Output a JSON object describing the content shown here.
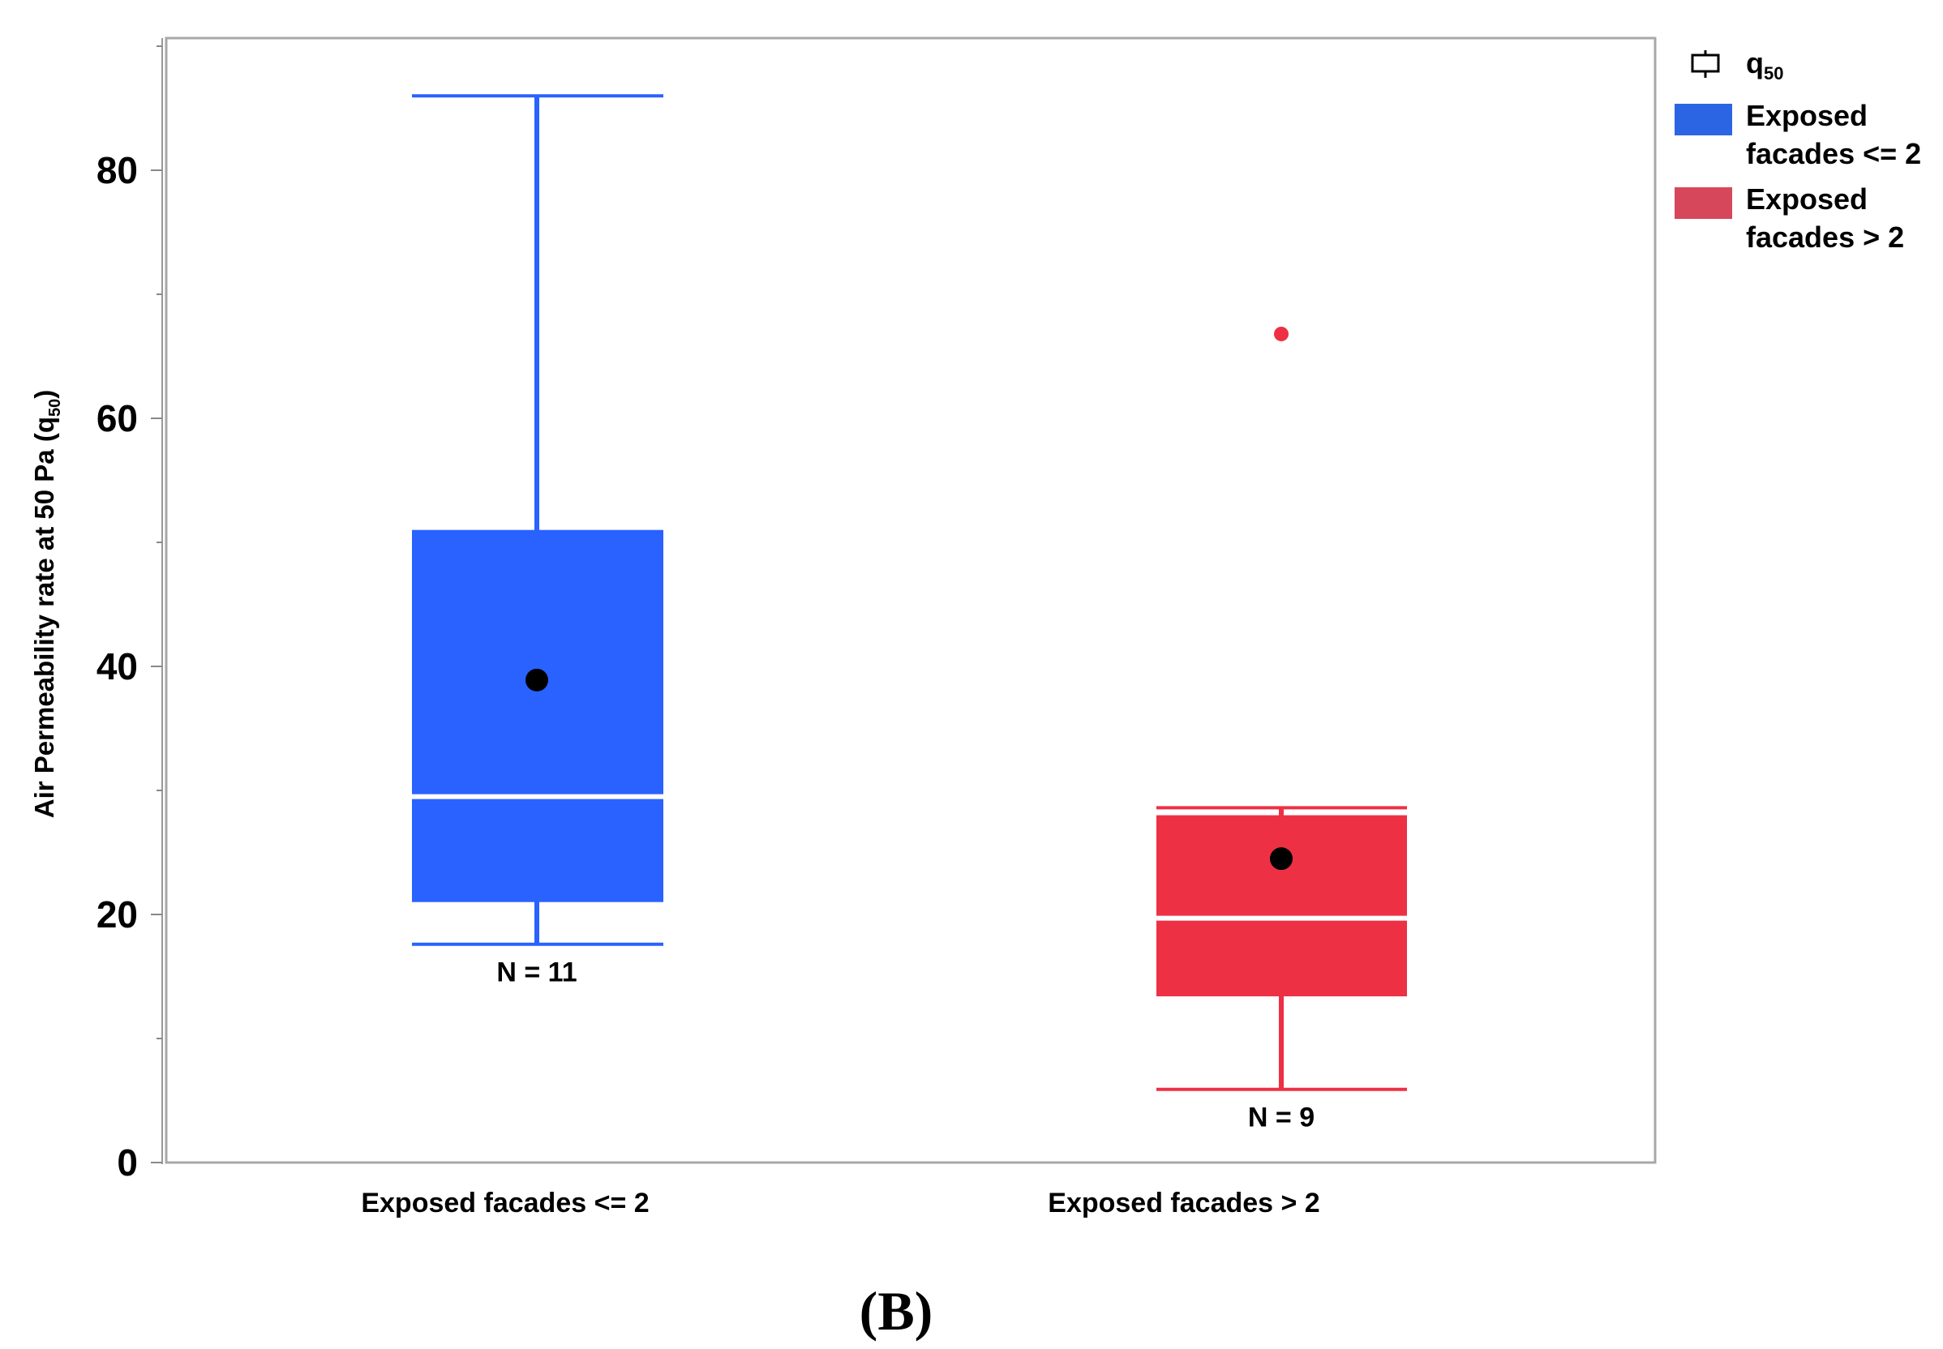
{
  "chart_data": {
    "type": "box",
    "y_axis": {
      "label_prefix": "Air Permeability rate at 50 Pa (q",
      "label_sub": "50",
      "label_suffix": ")",
      "ylim": [
        0,
        90
      ],
      "major_ticks": [
        0,
        20,
        40,
        60,
        80
      ],
      "minor_ticks": [
        10,
        30,
        50,
        70,
        90
      ],
      "tick_labels": [
        "0",
        "20",
        "40",
        "60",
        "80"
      ]
    },
    "categories": [
      "Exposed facades <= 2",
      "Exposed facades > 2"
    ],
    "boxes": [
      {
        "category": "Exposed facades <= 2",
        "color": "#2962ff",
        "whisker_low": 17.6,
        "q1": 21.0,
        "median": 29.5,
        "q3": 51.0,
        "whisker_high": 86.0,
        "mean": 38.9,
        "outliers": [],
        "n_label": "N = 11"
      },
      {
        "category": "Exposed facades > 2",
        "color": "#ee3044",
        "whisker_low": 5.9,
        "q1": 13.4,
        "median": 19.7,
        "q3": 28.0,
        "whisker_high": 28.6,
        "mean": 24.5,
        "outliers": [
          66.8
        ],
        "n_label": "N = 9"
      }
    ],
    "legend": {
      "symbol_label": "q",
      "symbol_sub": "50",
      "entries": [
        {
          "line1": "Exposed",
          "line2": "facades <= 2",
          "color": "#2c65e3"
        },
        {
          "line1": "Exposed",
          "line2": "facades > 2",
          "color": "#d6475b"
        }
      ]
    },
    "panel_label": "(B)"
  }
}
